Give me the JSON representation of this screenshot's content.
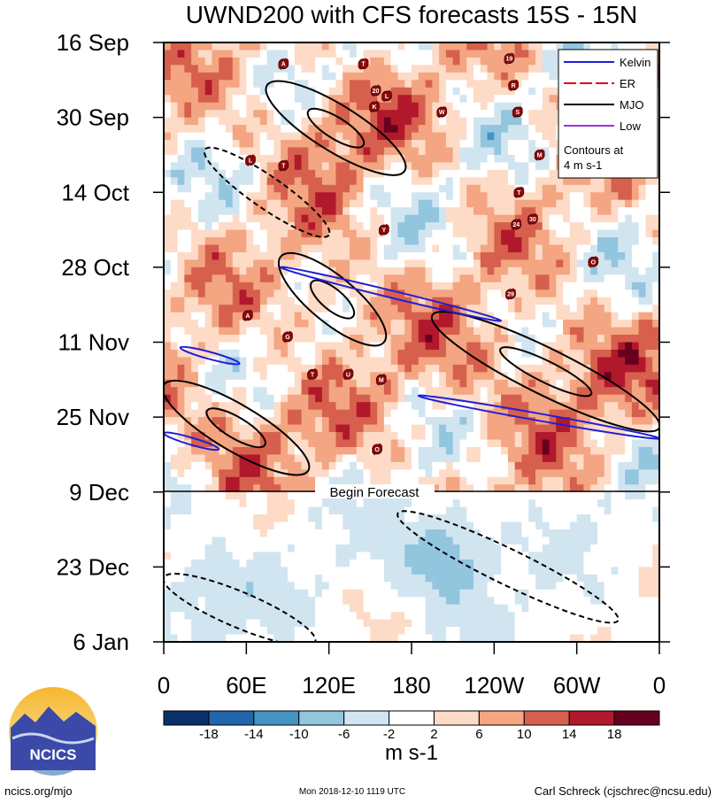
{
  "chart_data": {
    "type": "heatmap",
    "title": "UWND200 with CFS forecasts  15S - 15N",
    "x_ticks": [
      "0",
      "60E",
      "120E",
      "180",
      "120W",
      "60W",
      "0"
    ],
    "y_ticks": [
      "16 Sep",
      "30 Sep",
      "14 Oct",
      "28 Oct",
      "11 Nov",
      "25 Nov",
      "9 Dec",
      "23 Dec",
      "6 Jan"
    ],
    "xlim": [
      0,
      360
    ],
    "ylim_days": [
      0,
      112
    ],
    "forecast_start_day": 84,
    "forecast_label": "Begin Forecast",
    "colorbar": {
      "levels": [
        "-18",
        "-14",
        "-10",
        "-6",
        "-2",
        "2",
        "6",
        "10",
        "14",
        "18"
      ],
      "colors": [
        "#08306b",
        "#2166ac",
        "#4393c3",
        "#92c5de",
        "#d1e5f0",
        "#ffffff",
        "#fddbc7",
        "#f4a582",
        "#d6604d",
        "#b2182b",
        "#67001f"
      ],
      "units": "m s-1"
    },
    "legend": {
      "entries": [
        {
          "name": "Kelvin",
          "color": "#1f1fd6"
        },
        {
          "name": "ER",
          "color": "#e01010"
        },
        {
          "name": "MJO",
          "color": "#000000"
        },
        {
          "name": "Low",
          "color": "#9b30d8"
        }
      ],
      "note_line1": "Contours at",
      "note_line2": "4 m s-1"
    },
    "mjo_bands": [
      {
        "lon": [
          75,
          175
        ],
        "day": [
          8,
          24
        ]
      },
      {
        "lon": [
          85,
          160
        ],
        "day": [
          40,
          56
        ]
      },
      {
        "lon": [
          195,
          360
        ],
        "day": [
          51,
          72
        ]
      },
      {
        "lon": [
          0,
          105
        ],
        "day": [
          64,
          80
        ]
      }
    ],
    "kelvin_bands": [
      {
        "lon": [
          85,
          245
        ],
        "day": [
          42,
          52
        ]
      },
      {
        "lon": [
          185,
          360
        ],
        "day": [
          66,
          74
        ]
      },
      {
        "lon": [
          12,
          55
        ],
        "day": [
          57,
          60
        ]
      },
      {
        "lon": [
          0,
          40
        ],
        "day": [
          73,
          76
        ]
      }
    ],
    "storms": [
      {
        "lon": 87,
        "day": 4,
        "label": "A"
      },
      {
        "lon": 145,
        "day": 4,
        "label": "T"
      },
      {
        "lon": 154,
        "day": 9,
        "label": "20"
      },
      {
        "lon": 153,
        "day": 12,
        "label": "K"
      },
      {
        "lon": 162,
        "day": 10,
        "label": "L"
      },
      {
        "lon": 202,
        "day": 13,
        "label": "W"
      },
      {
        "lon": 251,
        "day": 3,
        "label": "19"
      },
      {
        "lon": 254,
        "day": 8,
        "label": "R"
      },
      {
        "lon": 257,
        "day": 13,
        "label": "S"
      },
      {
        "lon": 273,
        "day": 21,
        "label": "M"
      },
      {
        "lon": 63,
        "day": 22,
        "label": "L"
      },
      {
        "lon": 87,
        "day": 23,
        "label": "T"
      },
      {
        "lon": 258,
        "day": 28,
        "label": "T"
      },
      {
        "lon": 256,
        "day": 34,
        "label": "24"
      },
      {
        "lon": 268,
        "day": 33,
        "label": "30"
      },
      {
        "lon": 160,
        "day": 35,
        "label": "Y"
      },
      {
        "lon": 312,
        "day": 41,
        "label": "O"
      },
      {
        "lon": 252,
        "day": 47,
        "label": "29"
      },
      {
        "lon": 61,
        "day": 51,
        "label": "A"
      },
      {
        "lon": 90,
        "day": 55,
        "label": "G"
      },
      {
        "lon": 108,
        "day": 62,
        "label": "T"
      },
      {
        "lon": 134,
        "day": 62,
        "label": "U"
      },
      {
        "lon": 158,
        "day": 63,
        "label": "M"
      },
      {
        "lon": 155,
        "day": 76,
        "label": "O"
      }
    ]
  },
  "footer": {
    "logo_text": "NCICS",
    "url": "ncics.org/mjo",
    "timestamp": "Mon 2018-12-10 1119 UTC",
    "author": "Carl Schreck (cjschrec@ncsu.edu)"
  }
}
